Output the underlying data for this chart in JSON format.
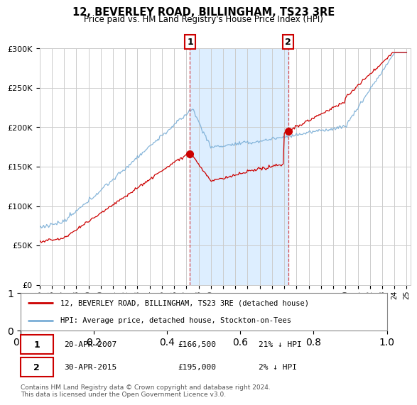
{
  "title": "12, BEVERLEY ROAD, BILLINGHAM, TS23 3RE",
  "subtitle": "Price paid vs. HM Land Registry's House Price Index (HPI)",
  "legend_line1": "12, BEVERLEY ROAD, BILLINGHAM, TS23 3RE (detached house)",
  "legend_line2": "HPI: Average price, detached house, Stockton-on-Tees",
  "annotation1_date": "20-APR-2007",
  "annotation1_price": "£166,500",
  "annotation1_hpi": "21% ↓ HPI",
  "annotation2_date": "30-APR-2015",
  "annotation2_price": "£195,000",
  "annotation2_hpi": "2% ↓ HPI",
  "footnote": "Contains HM Land Registry data © Crown copyright and database right 2024.\nThis data is licensed under the Open Government Licence v3.0.",
  "red_color": "#cc0000",
  "blue_color": "#7aaed6",
  "shading_color": "#ddeeff",
  "grid_color": "#cccccc",
  "background_color": "#ffffff",
  "point1_year": 2007.3,
  "point1_value": 166500,
  "point2_year": 2015.33,
  "point2_value": 195000,
  "xlim": [
    1995,
    2025.3
  ],
  "ylim": [
    0,
    300000
  ],
  "yticks": [
    0,
    50000,
    100000,
    150000,
    200000,
    250000,
    300000
  ]
}
